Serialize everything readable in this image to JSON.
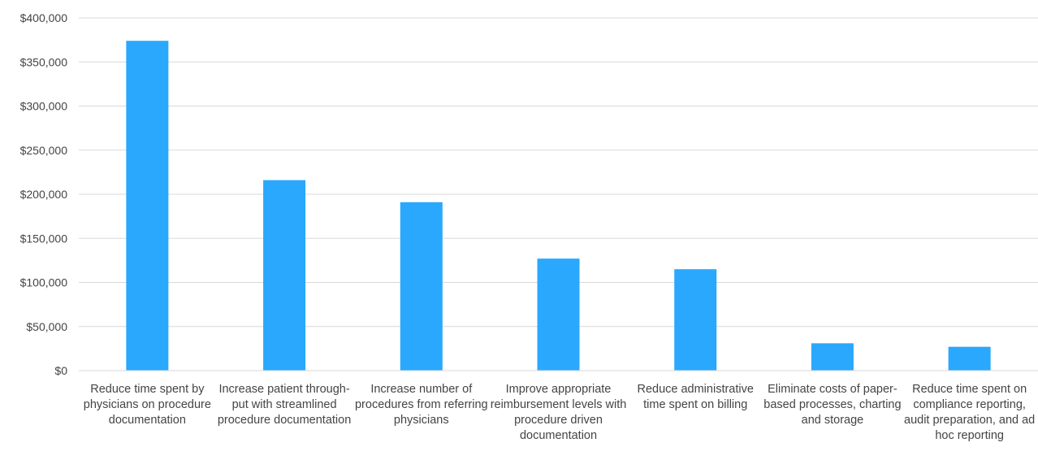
{
  "chart_data": {
    "type": "bar",
    "categories": [
      "Reduce time spent by physicians on procedure documentation",
      "Increase patient through-put with streamlined procedure documentation",
      "Increase number of procedures from referring physicians",
      "Improve appropriate reimbursement levels with procedure driven documentation",
      "Reduce administrative time spent on billing",
      "Eliminate costs of paper-based processes, charting and storage",
      "Reduce time spent on compliance reporting, audit preparation, and ad hoc reporting"
    ],
    "series": [
      {
        "values": [
          374000,
          216000,
          191000,
          127000,
          115000,
          31000,
          27000
        ]
      }
    ],
    "y_ticks": [
      "$0",
      "$50,000",
      "$100,000",
      "$150,000",
      "$200,000",
      "$250,000",
      "$300,000",
      "$350,000",
      "$400,000"
    ],
    "ylim": [
      0,
      400000
    ],
    "grid": true,
    "legend": "none",
    "bar_color": "#29a8fd",
    "grid_color": "#d9d9d9"
  }
}
